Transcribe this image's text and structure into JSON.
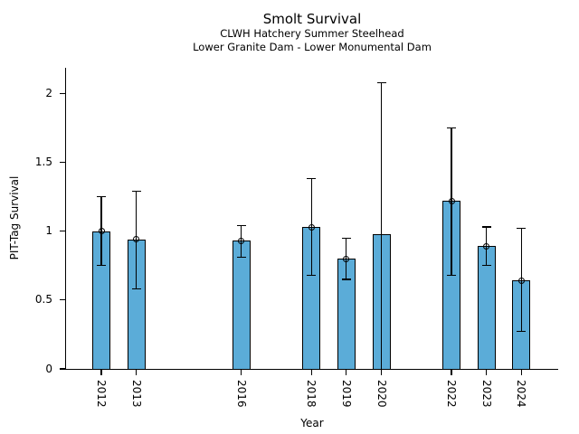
{
  "chart_data": {
    "type": "bar",
    "title": "Smolt Survival",
    "subtitle1": "CLWH Hatchery Summer Steelhead",
    "subtitle2": "Lower Granite Dam - Lower Monumental Dam",
    "xlabel": "Year",
    "ylabel": "PIT-Tag Survival",
    "xlim": [
      2011,
      2025
    ],
    "ylim": [
      0,
      2.19
    ],
    "grid": "off",
    "legend": "none",
    "bar_color": "#5BACD8",
    "bar_edge_color": "#000000",
    "yticks": [
      {
        "value": 0,
        "label": "0"
      },
      {
        "value": 0.5,
        "label": "0.5"
      },
      {
        "value": 1,
        "label": "1"
      },
      {
        "value": 1.5,
        "label": "1.5"
      },
      {
        "value": 2,
        "label": "2"
      }
    ],
    "points": [
      {
        "year": 2012,
        "label": "2012",
        "value": 1.0,
        "ci_low": 0.75,
        "ci_high": 1.25,
        "marker": true,
        "low_cap": true
      },
      {
        "year": 2013,
        "label": "2013",
        "value": 0.94,
        "ci_low": 0.58,
        "ci_high": 1.29,
        "marker": true,
        "low_cap": true
      },
      {
        "year": 2016,
        "label": "2016",
        "value": 0.93,
        "ci_low": 0.81,
        "ci_high": 1.04,
        "marker": true,
        "low_cap": true
      },
      {
        "year": 2018,
        "label": "2018",
        "value": 1.03,
        "ci_low": 0.68,
        "ci_high": 1.38,
        "marker": true,
        "low_cap": true
      },
      {
        "year": 2019,
        "label": "2019",
        "value": 0.8,
        "ci_low": 0.65,
        "ci_high": 0.95,
        "marker": true,
        "low_cap": true
      },
      {
        "year": 2020,
        "label": "2020",
        "value": 0.98,
        "ci_low": 0.0,
        "ci_high": 2.08,
        "marker": false,
        "low_cap": false
      },
      {
        "year": 2022,
        "label": "2022",
        "value": 1.22,
        "ci_low": 0.68,
        "ci_high": 1.75,
        "marker": true,
        "low_cap": true
      },
      {
        "year": 2023,
        "label": "2023",
        "value": 0.89,
        "ci_low": 0.75,
        "ci_high": 1.03,
        "marker": true,
        "low_cap": true
      },
      {
        "year": 2024,
        "label": "2024",
        "value": 0.64,
        "ci_low": 0.27,
        "ci_high": 1.02,
        "marker": true,
        "low_cap": true
      }
    ]
  }
}
